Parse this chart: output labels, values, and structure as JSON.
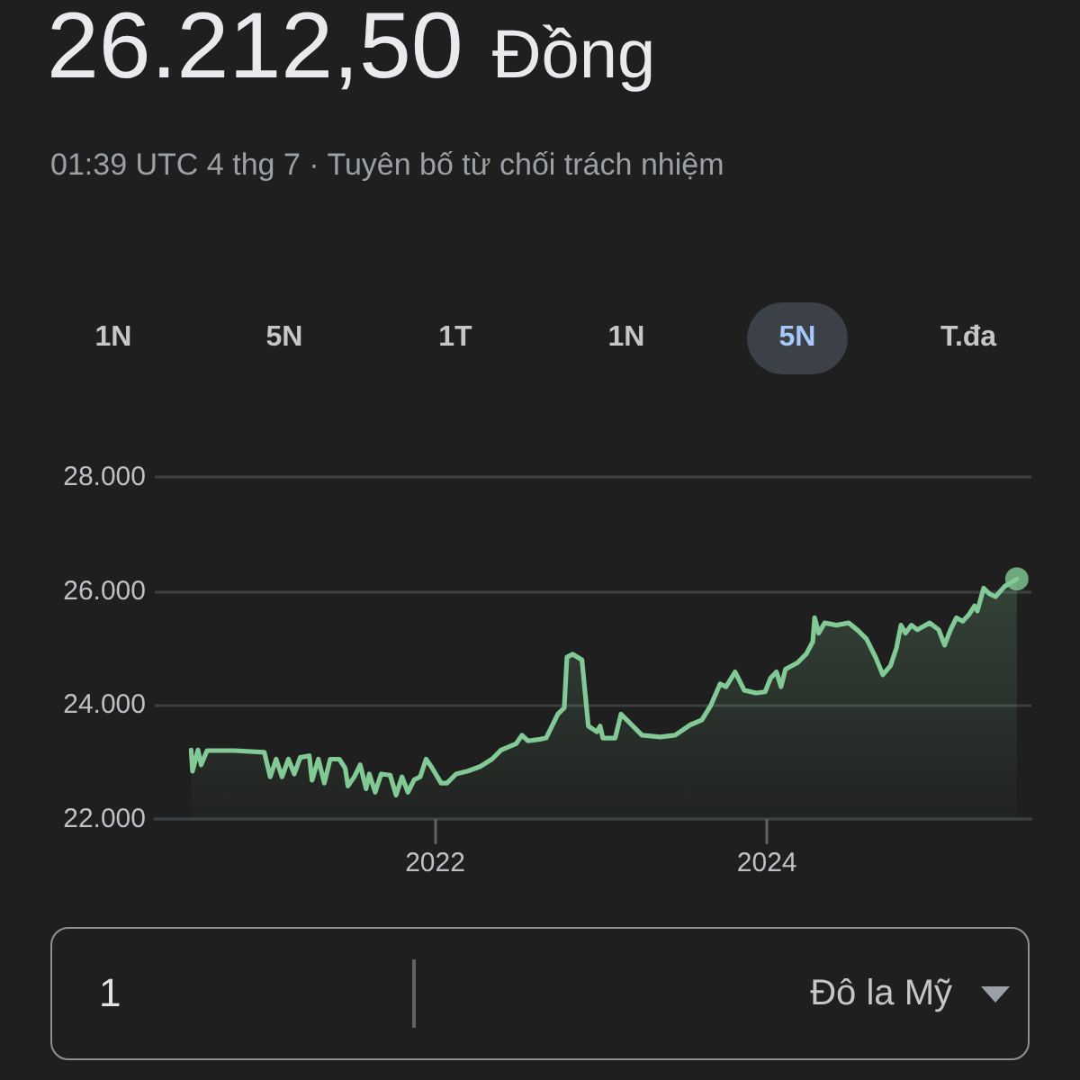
{
  "chart_data": {
    "type": "area",
    "title": "26.212,50 Đồng",
    "subtitle": "01:39 UTC 4 thg 7 · Tuyên bố từ chối trách nhiệm",
    "annotations": [
      "1N",
      "5N",
      "1T",
      "1N",
      "5N",
      "T.đa",
      "1",
      "Đô la Mỹ"
    ],
    "x": [
      "2020-07-13",
      "2020-07-16",
      "2020-07-28",
      "2020-08-04",
      "2020-08-17",
      "2020-10-16",
      "2020-12-21",
      "2021-01-03",
      "2021-01-16",
      "2021-01-29",
      "2021-02-12",
      "2021-02-25",
      "2021-03-10",
      "2021-03-30",
      "2021-04-05",
      "2021-04-19",
      "2021-05-02",
      "2021-05-15",
      "2021-06-04",
      "2021-06-17",
      "2021-06-23",
      "2021-07-07",
      "2021-07-20",
      "2021-08-02",
      "2021-08-09",
      "2021-08-22",
      "2021-09-04",
      "2021-09-24",
      "2021-10-07",
      "2021-10-20",
      "2021-11-02",
      "2021-11-16",
      "2021-11-29",
      "2021-12-12",
      "2021-12-25",
      "2022-01-14",
      "2022-01-27",
      "2022-02-16",
      "2022-03-14",
      "2022-04-10",
      "2022-05-06",
      "2022-05-26",
      "2022-06-28",
      "2022-07-11",
      "2022-07-24",
      "2022-08-20",
      "2022-09-02",
      "2022-09-28",
      "2022-10-12",
      "2022-10-18",
      "2022-10-31",
      "2022-11-20",
      "2022-12-04",
      "2022-12-23",
      "2022-12-30",
      "2023-01-05",
      "2023-02-01",
      "2023-02-14",
      "2023-03-06",
      "2023-04-01",
      "2023-05-11",
      "2023-06-13",
      "2023-07-16",
      "2023-08-11",
      "2023-08-31",
      "2023-09-20",
      "2023-10-03",
      "2023-10-23",
      "2023-11-12",
      "2023-12-08",
      "2023-12-28",
      "2024-01-09",
      "2024-01-22",
      "2024-02-01",
      "2024-02-11",
      "2024-03-08",
      "2024-03-28",
      "2024-04-11",
      "2024-04-15",
      "2024-04-24",
      "2024-05-07",
      "2024-06-02",
      "2024-06-29",
      "2024-07-19",
      "2024-08-07",
      "2024-08-27",
      "2024-09-12",
      "2024-09-29",
      "2024-10-12",
      "2024-10-22",
      "2024-11-01",
      "2024-11-14",
      "2024-11-27",
      "2024-12-24",
      "2025-01-13",
      "2025-01-26",
      "2025-02-08",
      "2025-02-21",
      "2025-03-07",
      "2025-03-20",
      "2025-04-02",
      "2025-04-08",
      "2025-04-22",
      "2025-05-05",
      "2025-05-18",
      "2025-06-07",
      "2025-07-04"
    ],
    "series": [
      {
        "color": "#81c995",
        "values": [
          23210,
          22840,
          23210,
          22950,
          23200,
          23200,
          23170,
          22740,
          23050,
          22740,
          23050,
          22790,
          23080,
          23110,
          22680,
          23050,
          22630,
          23050,
          23050,
          22890,
          22580,
          22740,
          22950,
          22530,
          22790,
          22470,
          22790,
          22770,
          22420,
          22740,
          22470,
          22690,
          22740,
          23050,
          22900,
          22630,
          22630,
          22790,
          22840,
          22920,
          23050,
          23210,
          23320,
          23470,
          23370,
          23400,
          23420,
          23840,
          23950,
          24840,
          24890,
          24790,
          23630,
          23530,
          23630,
          23420,
          23420,
          23840,
          23680,
          23470,
          23440,
          23470,
          23650,
          23740,
          24000,
          24370,
          24320,
          24580,
          24260,
          24210,
          24230,
          24470,
          24580,
          24320,
          24630,
          24740,
          24900,
          25110,
          25530,
          25260,
          25440,
          25400,
          25440,
          25310,
          25160,
          24840,
          24530,
          24690,
          25000,
          25400,
          25260,
          25400,
          25320,
          25440,
          25320,
          25050,
          25320,
          25530,
          25470,
          25580,
          25740,
          25650,
          26050,
          25950,
          25900,
          26080,
          26210
        ]
      },
      {
        "type": "scatter",
        "color": "#81c995",
        "x": [
          "2025-07-04"
        ],
        "values": [
          26210
        ]
      }
    ],
    "xlim": [
      "2020-04-24",
      "2025-08-05"
    ],
    "xticks": [
      "2022",
      "2024"
    ],
    "ylim": [
      22000,
      28000
    ],
    "yticks": [
      {
        "value": 22000,
        "label": "22.000"
      },
      {
        "value": 24000,
        "label": "24.000"
      },
      {
        "value": 26000,
        "label": "26.000"
      },
      {
        "value": 28000,
        "label": "28.000"
      }
    ],
    "grid": "y",
    "line_style": "solid"
  }
}
